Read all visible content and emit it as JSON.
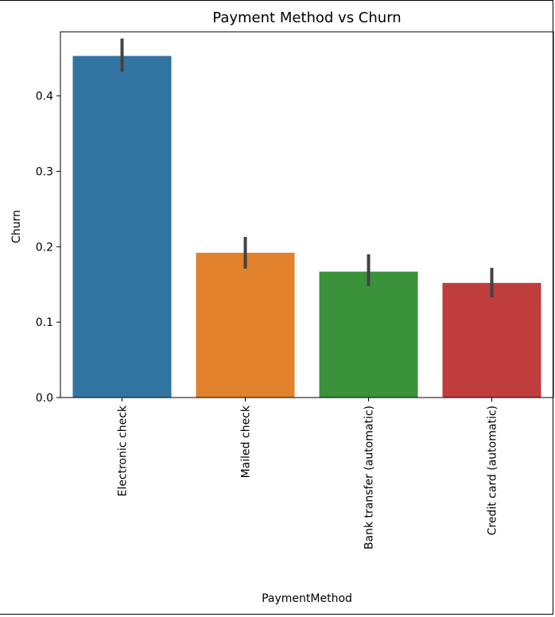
{
  "chart_data": {
    "type": "bar",
    "title": "Payment Method vs Churn",
    "xlabel": "PaymentMethod",
    "ylabel": "Churn",
    "categories": [
      "Electronic check",
      "Mailed check",
      "Bank transfer (automatic)",
      "Credit card (automatic)"
    ],
    "values": [
      0.453,
      0.192,
      0.167,
      0.152
    ],
    "error_low": [
      0.432,
      0.171,
      0.148,
      0.133
    ],
    "error_high": [
      0.476,
      0.213,
      0.19,
      0.172
    ],
    "colors": [
      "#3274a1",
      "#e1812c",
      "#3a923a",
      "#c03d3e"
    ],
    "ylim": [
      0,
      0.485
    ],
    "yticks": [
      0.0,
      0.1,
      0.2,
      0.3,
      0.4
    ],
    "ytick_labels": [
      "0.0",
      "0.1",
      "0.2",
      "0.3",
      "0.4"
    ],
    "grid": false,
    "legend": "none"
  }
}
